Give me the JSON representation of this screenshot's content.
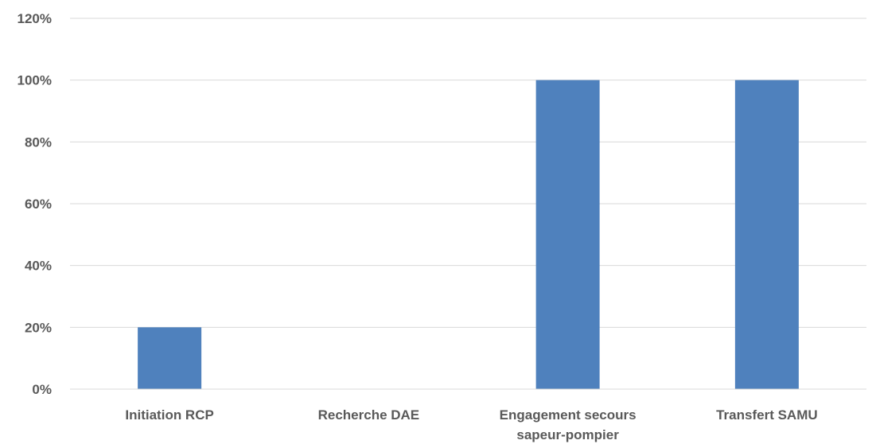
{
  "chart_data": {
    "type": "bar",
    "title": "",
    "xlabel": "",
    "ylabel": "",
    "categories": [
      [
        "Initiation RCP"
      ],
      [
        "Recherche DAE"
      ],
      [
        "Engagement secours",
        "sapeur-pompier"
      ],
      [
        "Transfert SAMU"
      ]
    ],
    "values": [
      20,
      0,
      100,
      100
    ],
    "ylim": [
      0,
      120
    ],
    "yticks": [
      0,
      20,
      40,
      60,
      80,
      100,
      120
    ],
    "ytick_format": "%",
    "grid": true,
    "legend": "none",
    "bar_color": "#4f81bd"
  }
}
